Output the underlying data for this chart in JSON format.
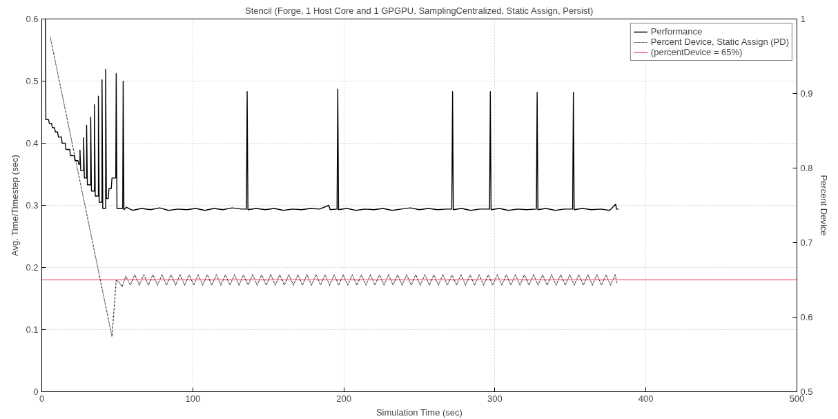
{
  "chart_data": {
    "type": "line",
    "title": "Stencil (Forge, 1 Host Core and 1 GPGPU, SamplingCentralized, Static Assign, Persist)",
    "xlabel": "Simulation Time (sec)",
    "ylabel": "Avg. Time/Timestep (sec)",
    "y2label": "Percent Device",
    "xlim": [
      0,
      500
    ],
    "xticks": [
      0,
      100,
      200,
      300,
      400,
      500
    ],
    "ylim": [
      0,
      0.6
    ],
    "yticks": [
      0,
      0.1,
      0.2,
      0.3,
      0.4,
      0.5,
      0.6
    ],
    "y2lim": [
      0.5,
      1
    ],
    "y2ticks": [
      0.5,
      0.6,
      0.7,
      0.8,
      0.9,
      1
    ],
    "grid": true,
    "legend": "top right",
    "series": [
      {
        "name": "Performance",
        "color": "#000000",
        "line_style": "solid",
        "x": [
          2.5,
          2.7,
          4.5,
          5,
          6.5,
          7,
          8.5,
          9,
          10.5,
          11,
          13,
          13.5,
          15.5,
          16,
          18.5,
          19,
          21.5,
          22,
          24,
          24.5,
          25.3,
          25.3,
          25.8,
          27.7,
          27.7,
          28.2,
          29.7,
          29.7,
          30.2,
          32.4,
          32.4,
          32.9,
          34.9,
          34.9,
          35.4,
          37.5,
          37.5,
          38,
          39.9,
          39.9,
          40.4,
          42.3,
          42.3,
          42.8,
          44,
          44.5,
          46,
          46.5,
          49,
          49.3,
          49.8,
          53.6,
          53.9,
          54.4,
          56,
          60,
          66,
          72,
          78,
          84,
          90,
          96,
          102,
          108,
          114,
          120,
          126,
          132,
          135.5,
          136,
          136.5,
          142,
          148,
          154,
          160,
          166,
          172,
          178,
          184,
          190,
          191,
          195.5,
          196,
          196.5,
          202,
          208,
          214,
          220,
          226,
          232,
          238,
          244,
          250,
          256,
          262,
          268,
          271.5,
          272,
          272.5,
          278,
          284,
          290,
          296.5,
          297,
          297.5,
          303,
          309,
          315,
          321,
          327.5,
          328,
          328.5,
          334,
          340,
          346,
          351.5,
          352,
          352.5,
          358,
          364,
          370,
          376,
          380,
          380.5,
          382
        ],
        "values": [
          0.6,
          0.438,
          0.438,
          0.432,
          0.432,
          0.425,
          0.425,
          0.418,
          0.418,
          0.41,
          0.41,
          0.4,
          0.4,
          0.39,
          0.39,
          0.38,
          0.38,
          0.372,
          0.372,
          0.366,
          0.366,
          0.389,
          0.356,
          0.356,
          0.409,
          0.344,
          0.344,
          0.429,
          0.333,
          0.333,
          0.442,
          0.323,
          0.323,
          0.462,
          0.315,
          0.315,
          0.476,
          0.305,
          0.305,
          0.502,
          0.295,
          0.295,
          0.519,
          0.311,
          0.311,
          0.327,
          0.327,
          0.344,
          0.344,
          0.512,
          0.295,
          0.295,
          0.5,
          0.293,
          0.297,
          0.292,
          0.295,
          0.293,
          0.296,
          0.292,
          0.294,
          0.293,
          0.295,
          0.292,
          0.295,
          0.293,
          0.296,
          0.294,
          0.294,
          0.483,
          0.293,
          0.295,
          0.293,
          0.295,
          0.292,
          0.294,
          0.293,
          0.295,
          0.294,
          0.3,
          0.293,
          0.294,
          0.487,
          0.293,
          0.295,
          0.292,
          0.294,
          0.293,
          0.295,
          0.292,
          0.294,
          0.296,
          0.293,
          0.295,
          0.293,
          0.294,
          0.294,
          0.483,
          0.293,
          0.295,
          0.292,
          0.294,
          0.294,
          0.483,
          0.293,
          0.295,
          0.292,
          0.294,
          0.293,
          0.294,
          0.482,
          0.293,
          0.295,
          0.292,
          0.294,
          0.294,
          0.482,
          0.293,
          0.295,
          0.293,
          0.294,
          0.292,
          0.302,
          0.294,
          0.294
        ]
      },
      {
        "name": "Percent Device, Static Assign (PD)",
        "color": "#000000",
        "line_style": "dotted",
        "axis": "y2",
        "x": [
          5.6,
          46.5,
          49.3,
          51.6,
          53.2,
          55.6,
          58.6,
          61.6,
          64.6,
          67.6,
          70.6,
          73.6,
          76.6,
          79.6,
          82.6,
          85.6,
          88.6,
          91.6,
          94.6,
          97.6,
          100.6,
          103.6,
          106.6,
          109.6,
          112.6,
          115.6,
          118.6,
          121.6,
          124.6,
          127.6,
          130.6,
          133.6,
          136.6,
          139.6,
          142.6,
          145.6,
          148.6,
          151.6,
          154.6,
          157.6,
          160.6,
          163.6,
          166.6,
          169.6,
          172.6,
          175.6,
          178.6,
          181.6,
          184.6,
          187.6,
          190.6,
          193.6,
          196.6,
          199.6,
          202.6,
          205.6,
          208.6,
          211.6,
          214.6,
          217.6,
          220.6,
          223.6,
          226.6,
          229.6,
          232.6,
          235.6,
          238.6,
          241.6,
          244.6,
          247.6,
          250.6,
          253.6,
          256.6,
          259.6,
          262.6,
          265.6,
          268.6,
          271.6,
          274.6,
          277.6,
          280.6,
          283.6,
          286.6,
          289.6,
          292.6,
          295.6,
          298.6,
          301.6,
          304.6,
          307.6,
          310.6,
          313.6,
          316.6,
          319.6,
          322.6,
          325.6,
          328.6,
          331.6,
          334.6,
          337.6,
          340.6,
          343.6,
          346.6,
          349.6,
          352.6,
          355.6,
          358.6,
          361.6,
          364.6,
          367.6,
          370.6,
          373.6,
          376.6,
          379.6,
          381
        ],
        "values": [
          0.976,
          0.574,
          0.65,
          0.646,
          0.641,
          0.655,
          0.643,
          0.657,
          0.643,
          0.657,
          0.643,
          0.657,
          0.643,
          0.657,
          0.643,
          0.657,
          0.643,
          0.657,
          0.643,
          0.657,
          0.643,
          0.657,
          0.643,
          0.657,
          0.643,
          0.657,
          0.643,
          0.657,
          0.643,
          0.657,
          0.643,
          0.657,
          0.643,
          0.657,
          0.643,
          0.657,
          0.643,
          0.657,
          0.643,
          0.657,
          0.643,
          0.657,
          0.643,
          0.657,
          0.643,
          0.657,
          0.643,
          0.657,
          0.643,
          0.657,
          0.643,
          0.657,
          0.643,
          0.657,
          0.643,
          0.657,
          0.643,
          0.657,
          0.643,
          0.657,
          0.643,
          0.657,
          0.643,
          0.657,
          0.643,
          0.657,
          0.643,
          0.657,
          0.643,
          0.657,
          0.643,
          0.657,
          0.643,
          0.657,
          0.643,
          0.657,
          0.643,
          0.657,
          0.643,
          0.657,
          0.643,
          0.657,
          0.643,
          0.657,
          0.643,
          0.657,
          0.643,
          0.657,
          0.643,
          0.657,
          0.643,
          0.657,
          0.643,
          0.657,
          0.643,
          0.657,
          0.643,
          0.657,
          0.643,
          0.657,
          0.643,
          0.657,
          0.643,
          0.657,
          0.643,
          0.657,
          0.643,
          0.657,
          0.643,
          0.657,
          0.643,
          0.657,
          0.643,
          0.657,
          0.645
        ]
      }
    ],
    "ref_lines": [
      {
        "axis": "y2",
        "value": 0.65,
        "label": "(percentDevice = 65%)",
        "color": "#ff1a40",
        "line_style": "solid"
      }
    ]
  }
}
